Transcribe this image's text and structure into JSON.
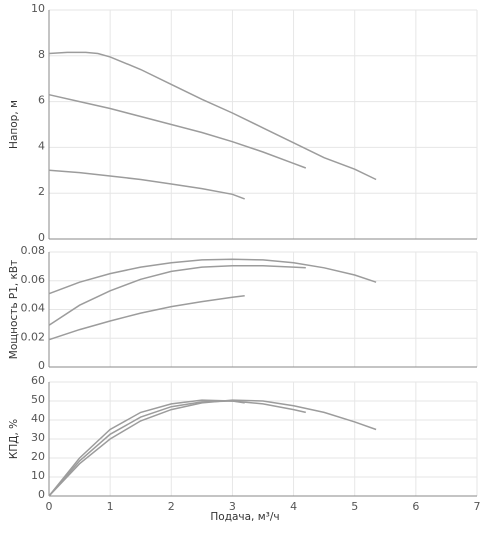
{
  "chart_data": [
    {
      "type": "line",
      "ylabel": "Напор, м",
      "xlim": [
        0,
        7
      ],
      "ylim": [
        0,
        10
      ],
      "xticks": [
        0,
        1,
        2,
        3,
        4,
        5,
        6,
        7
      ],
      "yticks": [
        "0",
        "2",
        "4",
        "6",
        "8",
        "10"
      ],
      "grid": true,
      "series": [
        {
          "x": [
            0,
            0.3,
            0.6,
            0.8,
            1,
            1.5,
            2,
            2.5,
            3,
            3.5,
            4,
            4.5,
            5,
            5.35
          ],
          "y": [
            8.1,
            8.15,
            8.15,
            8.1,
            7.95,
            7.4,
            6.75,
            6.1,
            5.5,
            4.85,
            4.2,
            3.55,
            3.05,
            2.6
          ]
        },
        {
          "x": [
            0,
            0.5,
            1,
            1.5,
            2,
            2.5,
            3,
            3.5,
            4,
            4.2
          ],
          "y": [
            6.3,
            6.0,
            5.7,
            5.35,
            5.0,
            4.65,
            4.25,
            3.8,
            3.3,
            3.1
          ]
        },
        {
          "x": [
            0,
            0.5,
            1,
            1.5,
            2,
            2.5,
            3,
            3.2
          ],
          "y": [
            3.0,
            2.9,
            2.75,
            2.6,
            2.4,
            2.2,
            1.95,
            1.75
          ]
        }
      ],
      "color": "#9c9c9c"
    },
    {
      "type": "line",
      "ylabel": "Мощность P1, кВт",
      "xlim": [
        0,
        7
      ],
      "ylim": [
        0,
        0.08
      ],
      "xticks": [
        0,
        1,
        2,
        3,
        4,
        5,
        6,
        7
      ],
      "yticks": [
        "0",
        "0.02",
        "0.04",
        "0.06",
        "0.08"
      ],
      "grid": true,
      "series": [
        {
          "x": [
            0,
            0.5,
            1,
            1.5,
            2,
            2.5,
            3,
            3.5,
            4,
            4.5,
            5,
            5.35
          ],
          "y": [
            0.051,
            0.059,
            0.065,
            0.0695,
            0.0725,
            0.0745,
            0.075,
            0.0745,
            0.0725,
            0.069,
            0.064,
            0.059
          ]
        },
        {
          "x": [
            0,
            0.5,
            1,
            1.5,
            2,
            2.5,
            3,
            3.5,
            4,
            4.2
          ],
          "y": [
            0.029,
            0.043,
            0.053,
            0.061,
            0.0665,
            0.0695,
            0.0705,
            0.0705,
            0.0695,
            0.069
          ]
        },
        {
          "x": [
            0,
            0.5,
            1,
            1.5,
            2,
            2.5,
            3,
            3.2
          ],
          "y": [
            0.019,
            0.026,
            0.032,
            0.0375,
            0.042,
            0.0455,
            0.0485,
            0.0495
          ]
        }
      ],
      "color": "#9c9c9c"
    },
    {
      "type": "line",
      "xlabel": "Подача, м³/ч",
      "ylabel": "КПД, %",
      "xlim": [
        0,
        7
      ],
      "ylim": [
        0,
        60
      ],
      "xticks": [
        "0",
        "1",
        "2",
        "3",
        "4",
        "5",
        "6",
        "7"
      ],
      "yticks": [
        "0",
        "10",
        "20",
        "30",
        "40",
        "50",
        "60"
      ],
      "grid": true,
      "series": [
        {
          "x": [
            0,
            0.5,
            1,
            1.5,
            2,
            2.5,
            3,
            3.5,
            4,
            4.5,
            5,
            5.35
          ],
          "y": [
            0,
            17,
            30,
            39.5,
            45.5,
            49,
            50.5,
            50,
            47.5,
            44,
            39,
            35
          ]
        },
        {
          "x": [
            0,
            0.5,
            1,
            1.5,
            2,
            2.5,
            3,
            3.5,
            4,
            4.2
          ],
          "y": [
            0,
            18.5,
            32.5,
            41.5,
            47,
            49.5,
            50,
            48.5,
            45.5,
            44
          ]
        },
        {
          "x": [
            0,
            0.5,
            1,
            1.5,
            2,
            2.5,
            3,
            3.2
          ],
          "y": [
            0,
            20,
            35,
            44,
            48.5,
            50.5,
            50,
            49
          ]
        }
      ],
      "color": "#9c9c9c"
    }
  ]
}
